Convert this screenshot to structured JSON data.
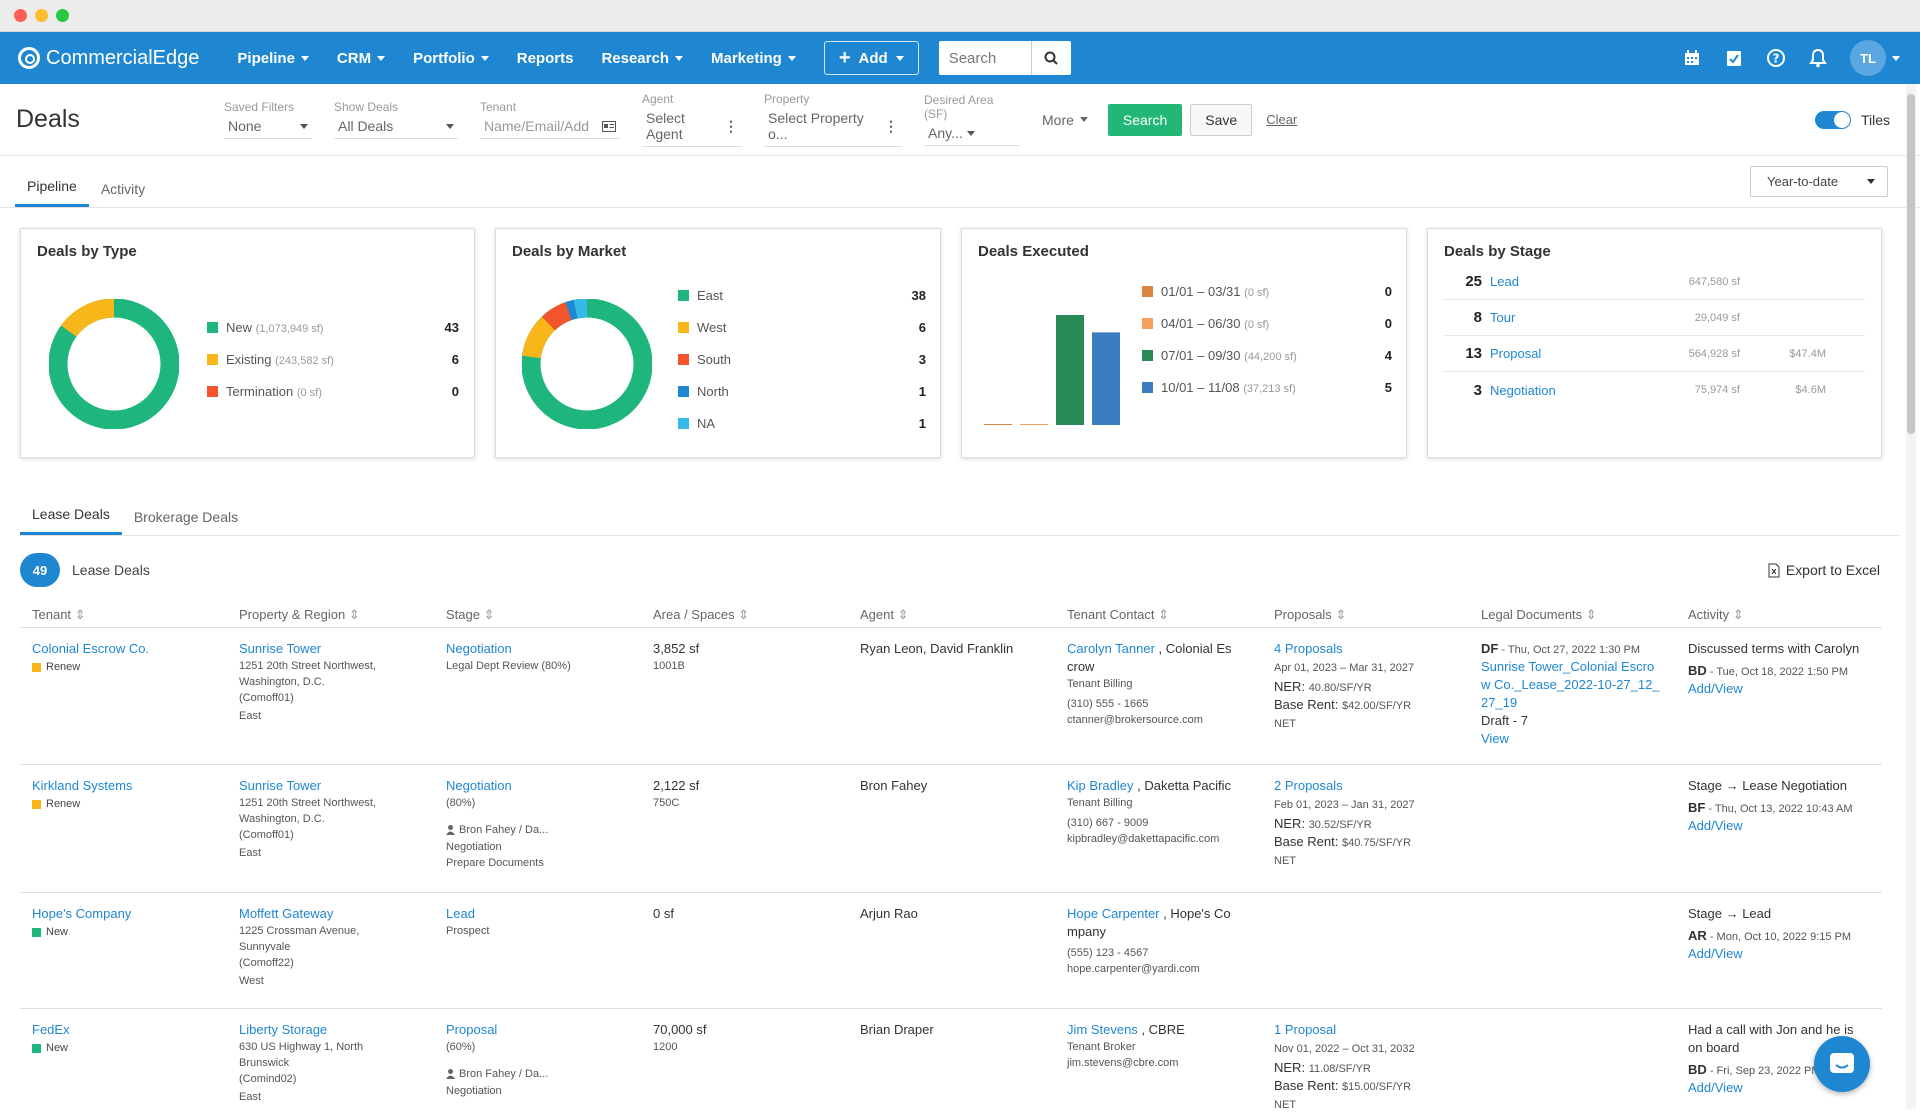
{
  "nav": {
    "brand": "CommercialEdge",
    "items": [
      "Pipeline",
      "CRM",
      "Portfolio",
      "Reports",
      "Research",
      "Marketing"
    ],
    "add_label": "Add",
    "search_placeholder": "Search",
    "avatar_initials": "TL"
  },
  "filters": {
    "page_title": "Deals",
    "saved_filters_label": "Saved Filters",
    "saved_filters_value": "None",
    "show_deals_label": "Show Deals",
    "show_deals_value": "All Deals",
    "tenant_label": "Tenant",
    "tenant_placeholder": "Name/Email/Add",
    "agent_label": "Agent",
    "agent_placeholder": "Select Agent",
    "property_label": "Property",
    "property_placeholder": "Select Property o...",
    "area_label": "Desired Area (SF)",
    "area_value": "Any...",
    "more_label": "More",
    "search_label": "Search",
    "save_label": "Save",
    "clear_label": "Clear",
    "tiles_label": "Tiles"
  },
  "tabs": {
    "pipeline": "Pipeline",
    "activity": "Activity",
    "range": "Year-to-date"
  },
  "cards": {
    "by_type": {
      "title": "Deals by Type",
      "items": [
        {
          "label": "New",
          "sub": "(1,073,949 sf)",
          "count": "43",
          "color": "#1fb67d"
        },
        {
          "label": "Existing",
          "sub": "(243,582 sf)",
          "count": "6",
          "color": "#f7b619"
        },
        {
          "label": "Termination",
          "sub": "(0 sf)",
          "count": "0",
          "color": "#f2552c"
        }
      ]
    },
    "by_market": {
      "title": "Deals by Market",
      "items": [
        {
          "label": "East",
          "count": "38",
          "color": "#1fb67d"
        },
        {
          "label": "West",
          "count": "6",
          "color": "#f7b619"
        },
        {
          "label": "South",
          "count": "3",
          "color": "#f2552c"
        },
        {
          "label": "North",
          "count": "1",
          "color": "#1f87d2"
        },
        {
          "label": "NA",
          "count": "1",
          "color": "#37b9e8"
        }
      ]
    },
    "executed": {
      "title": "Deals Executed",
      "items": [
        {
          "label": "01/01 – 03/31",
          "sub": "(0 sf)",
          "count": "0",
          "color": "#d98541"
        },
        {
          "label": "04/01 – 06/30",
          "sub": "(0 sf)",
          "count": "0",
          "color": "#f5a05c"
        },
        {
          "label": "07/01 – 09/30",
          "sub": "(44,200 sf)",
          "count": "4",
          "color": "#2a8a57"
        },
        {
          "label": "10/01 – 11/08",
          "sub": "(37,213 sf)",
          "count": "5",
          "color": "#3b7bbf"
        }
      ]
    },
    "by_stage": {
      "title": "Deals by Stage",
      "items": [
        {
          "count": "25",
          "label": "Lead",
          "sf": "647,580 sf",
          "amount": ""
        },
        {
          "count": "8",
          "label": "Tour",
          "sf": "29,049 sf",
          "amount": ""
        },
        {
          "count": "13",
          "label": "Proposal",
          "sf": "564,928 sf",
          "amount": "$47.4M"
        },
        {
          "count": "3",
          "label": "Negotiation",
          "sf": "75,974 sf",
          "amount": "$4.6M"
        }
      ]
    }
  },
  "chart_data": [
    {
      "type": "pie",
      "title": "Deals by Type",
      "categories": [
        "New",
        "Existing",
        "Termination"
      ],
      "values": [
        43,
        6,
        0
      ]
    },
    {
      "type": "pie",
      "title": "Deals by Market",
      "categories": [
        "East",
        "West",
        "South",
        "North",
        "NA"
      ],
      "values": [
        38,
        6,
        3,
        1,
        1
      ]
    },
    {
      "type": "bar",
      "title": "Deals Executed",
      "categories": [
        "01/01 – 03/31",
        "04/01 – 06/30",
        "07/01 – 09/30",
        "10/01 – 11/08"
      ],
      "values": [
        0,
        0,
        44200,
        37213
      ]
    }
  ],
  "deals": {
    "tab_lease": "Lease Deals",
    "tab_brokerage": "Brokerage Deals",
    "count": "49",
    "count_label": "Lease Deals",
    "export_label": "Export to Excel",
    "columns": [
      "Tenant",
      "Property & Region",
      "Stage",
      "Area / Spaces",
      "Agent",
      "Tenant Contact",
      "Proposals",
      "Legal Documents",
      "Activity"
    ],
    "rows": [
      {
        "tenant": "Colonial Escrow Co.",
        "type": "Renew",
        "type_color": "#f7b619",
        "property": "Sunrise Tower",
        "addr1": "1251 20th Street Northwest,",
        "addr2": "Washington, D.C.",
        "code": "(Comoff01)",
        "region": "East",
        "stage": "Negotiation",
        "stage_sub": "Legal Dept Review (80%)",
        "stage_person": "",
        "stage_extra1": "",
        "stage_extra2": "",
        "area": "3,852 sf",
        "space": "1001B",
        "agent": "Ryan Leon, David Franklin",
        "contact": "Carolyn Tanner",
        "contact_co": ", Colonial Es crow",
        "contact_role": "Tenant Billing",
        "phone": "(310) 555 - 1665",
        "email": "ctanner@brokersource.com",
        "proposals": "4 Proposals",
        "prop_range": "Apr 01, 2023 – Mar 31, 2027",
        "ner": "NER:",
        "ner_val": "40.80/SF/YR",
        "base": "Base Rent:",
        "base_val": "$42.00/SF/YR",
        "net": "NET",
        "doc_initials": "DF",
        "doc_date": " - Thu, Oct 27, 2022 1:30 PM",
        "doc_link": "Sunrise Tower_Colonial Escrow Co._Lease_2022-10-27_12_27_19",
        "doc_draft": "Draft - 7",
        "doc_view": "View",
        "act_text": "Discussed terms with Carolyn",
        "act_initials": "BD",
        "act_date": " -  Tue, Oct 18, 2022 1:50 PM",
        "act_link": "Add/View"
      },
      {
        "tenant": "Kirkland Systems",
        "type": "Renew",
        "type_color": "#f7b619",
        "property": "Sunrise Tower",
        "addr1": "1251 20th Street Northwest,",
        "addr2": "Washington, D.C.",
        "code": "(Comoff01)",
        "region": "East",
        "stage": "Negotiation",
        "stage_sub": "(80%)",
        "stage_person": "Bron Fahey / Da...",
        "stage_extra1": "Negotiation",
        "stage_extra2": "Prepare Documents",
        "area": "2,122 sf",
        "space": "750C",
        "agent": "Bron Fahey",
        "contact": "Kip Bradley",
        "contact_co": ", Daketta Pacific",
        "contact_role": "Tenant Billing",
        "phone": "(310) 667 - 9009",
        "email": "kipbradley@dakettapacific.com",
        "proposals": "2 Proposals",
        "prop_range": "Feb 01, 2023 – Jan 31, 2027",
        "ner": "NER:",
        "ner_val": "30.52/SF/YR",
        "base": "Base Rent:",
        "base_val": "$40.75/SF/YR",
        "net": "NET",
        "doc_initials": "",
        "doc_date": "",
        "doc_link": "",
        "doc_draft": "",
        "doc_view": "",
        "act_text": "Stage → Lease Negotiation",
        "act_initials": "BF",
        "act_date": " -  Thu, Oct 13, 2022 10:43 AM",
        "act_link": "Add/View"
      },
      {
        "tenant": "Hope's Company",
        "type": "New",
        "type_color": "#1fb67d",
        "property": "Moffett Gateway",
        "addr1": "1225 Crossman Avenue,",
        "addr2": "Sunnyvale",
        "code": "(Comoff22)",
        "region": "West",
        "stage": "Lead",
        "stage_sub": "Prospect",
        "stage_person": "",
        "stage_extra1": "",
        "stage_extra2": "",
        "area": "0 sf",
        "space": "",
        "agent": "Arjun Rao",
        "contact": "Hope Carpenter",
        "contact_co": ", Hope's Co mpany",
        "contact_role": "",
        "phone": "(555) 123 - 4567",
        "email": "hope.carpenter@yardi.com",
        "proposals": "",
        "prop_range": "",
        "ner": "",
        "ner_val": "",
        "base": "",
        "base_val": "",
        "net": "",
        "doc_initials": "",
        "doc_date": "",
        "doc_link": "",
        "doc_draft": "",
        "doc_view": "",
        "act_text": "Stage → Lead",
        "act_initials": "AR",
        "act_date": " -  Mon, Oct 10, 2022 9:15 PM",
        "act_link": "Add/View"
      },
      {
        "tenant": "FedEx",
        "type": "New",
        "type_color": "#1fb67d",
        "property": "Liberty Storage",
        "addr1": "630 US Highway 1, North",
        "addr2": "Brunswick",
        "code": "(Comind02)",
        "region": "East",
        "stage": "Proposal",
        "stage_sub": "(60%)",
        "stage_person": "Bron Fahey / Da...",
        "stage_extra1": "Negotiation",
        "stage_extra2": "",
        "area": "70,000 sf",
        "space": "1200",
        "agent": "Brian Draper",
        "contact": "Jim Stevens",
        "contact_co": ", CBRE",
        "contact_role": "Tenant Broker",
        "phone": "",
        "email": "jim.stevens@cbre.com",
        "proposals": "1 Proposal",
        "prop_range": "Nov 01, 2022 – Oct 31, 2032",
        "ner": "NER:",
        "ner_val": "11.08/SF/YR",
        "base": "Base Rent:",
        "base_val": "$15.00/SF/YR",
        "net": "NET",
        "doc_initials": "",
        "doc_date": "",
        "doc_link": "",
        "doc_draft": "",
        "doc_view": "",
        "act_text": "Had a call with Jon and he is on board",
        "act_initials": "BD",
        "act_date": " -  Fri, Sep 23, 2022 PM",
        "act_link": "Add/View"
      }
    ]
  }
}
